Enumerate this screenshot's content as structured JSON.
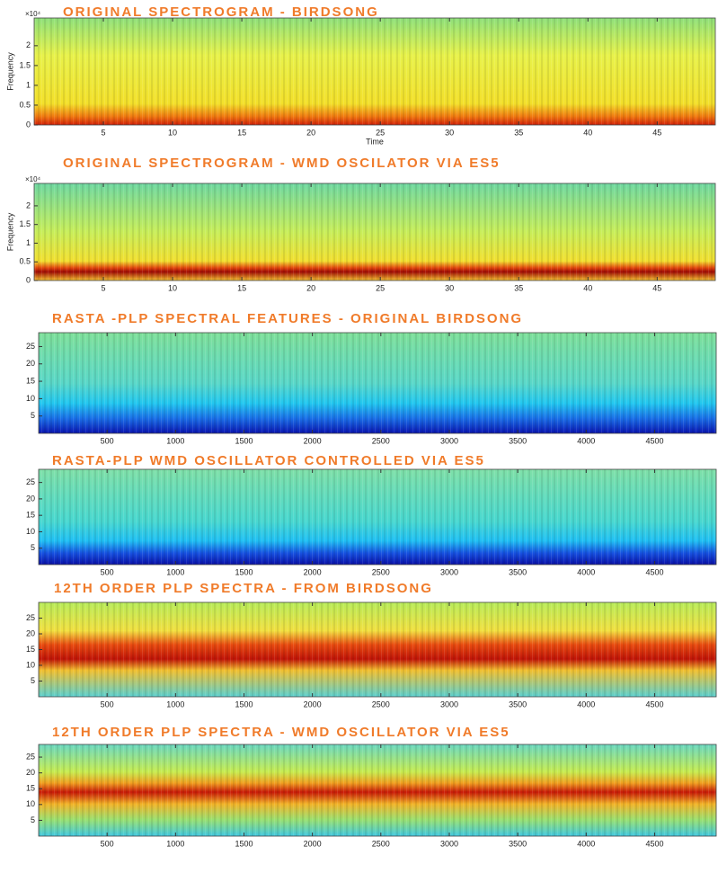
{
  "chart_data": [
    {
      "type": "spectrogram",
      "title": "ORIGINAL SPECTROGRAM - BIRDSONG",
      "xlabel": "Time",
      "ylabel": "Frequency",
      "y_multiplier": "×10⁴",
      "xlim": [
        0,
        49.2
      ],
      "xticks": [
        5,
        10,
        15,
        20,
        25,
        30,
        35,
        40,
        45
      ],
      "ylim": [
        0,
        2.7
      ],
      "yticks": [
        0,
        0.5,
        1,
        1.5,
        2
      ]
    },
    {
      "type": "spectrogram",
      "title": "ORIGINAL SPECTROGRAM - WMD OSCILATOR VIA ES5",
      "ylabel": "Frequency",
      "y_multiplier": "×10⁴",
      "xlim": [
        0,
        49.2
      ],
      "xticks": [
        5,
        10,
        15,
        20,
        25,
        30,
        35,
        40,
        45
      ],
      "ylim": [
        0,
        2.6
      ],
      "yticks": [
        0,
        0.5,
        1,
        1.5,
        2
      ]
    },
    {
      "type": "spectrogram",
      "title": "RASTA -PLP SPECTRAL FEATURES - ORIGINAL BIRDSONG",
      "xlim": [
        0,
        4950
      ],
      "xticks": [
        500,
        1000,
        1500,
        2000,
        2500,
        3000,
        3500,
        4000,
        4500
      ],
      "ylim": [
        0,
        29
      ],
      "yticks": [
        5,
        10,
        15,
        20,
        25
      ]
    },
    {
      "type": "spectrogram",
      "title": "RASTA-PLP WMD OSCILLATOR CONTROLLED VIA ES5",
      "xlim": [
        0,
        4950
      ],
      "xticks": [
        500,
        1000,
        1500,
        2000,
        2500,
        3000,
        3500,
        4000,
        4500
      ],
      "ylim": [
        0,
        29
      ],
      "yticks": [
        5,
        10,
        15,
        20,
        25
      ]
    },
    {
      "type": "spectrogram",
      "title": "12TH ORDER PLP SPECTRA - FROM BIRDSONG",
      "xlim": [
        0,
        4950
      ],
      "xticks": [
        500,
        1000,
        1500,
        2000,
        2500,
        3000,
        3500,
        4000,
        4500
      ],
      "ylim": [
        0,
        30
      ],
      "yticks": [
        5,
        10,
        15,
        20,
        25
      ]
    },
    {
      "type": "spectrogram",
      "title": "12TH ORDER PLP SPECTRA - WMD OSCILLATOR VIA ES5",
      "xlim": [
        0,
        4950
      ],
      "xticks": [
        500,
        1000,
        1500,
        2000,
        2500,
        3000,
        3500,
        4000,
        4500
      ],
      "ylim": [
        0,
        29
      ],
      "yticks": [
        5,
        10,
        15,
        20,
        25
      ]
    }
  ]
}
